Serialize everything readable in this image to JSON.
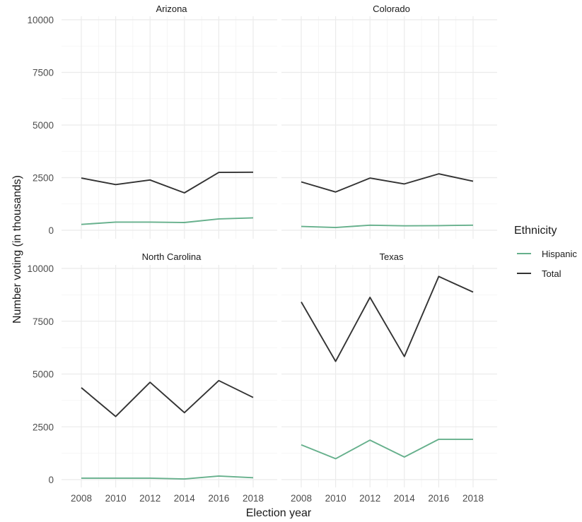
{
  "colors": {
    "hispanic": "#66b08c",
    "total": "#333333",
    "grid": "#ebebeb"
  },
  "legend": {
    "title": "Ethnicity",
    "items": [
      {
        "label": "Hispanic",
        "color": "#66b08c"
      },
      {
        "label": "Total",
        "color": "#333333"
      }
    ]
  },
  "chart_data": {
    "type": "line",
    "xlabel": "Election year",
    "ylabel": "Number voting (in thousands)",
    "x": [
      2008,
      2010,
      2012,
      2014,
      2016,
      2018
    ],
    "x_ticks": [
      "2008",
      "2010",
      "2012",
      "2014",
      "2016",
      "2018"
    ],
    "ylim": [
      0,
      10000
    ],
    "y_ticks": [
      "0",
      "2500",
      "5000",
      "7500",
      "10000"
    ],
    "grid": true,
    "legend_position": "right",
    "facets": [
      {
        "title": "Arizona",
        "series": [
          {
            "name": "Total",
            "values": [
              2480,
              2170,
              2390,
              1780,
              2750,
              2760
            ]
          },
          {
            "name": "Hispanic",
            "values": [
              280,
              390,
              390,
              370,
              540,
              590
            ]
          }
        ]
      },
      {
        "title": "Colorado",
        "series": [
          {
            "name": "Total",
            "values": [
              2300,
              1820,
              2480,
              2200,
              2680,
              2330
            ]
          },
          {
            "name": "Hispanic",
            "values": [
              180,
              130,
              240,
              210,
              220,
              240
            ]
          }
        ]
      },
      {
        "title": "North Carolina",
        "series": [
          {
            "name": "Total",
            "values": [
              4350,
              2990,
              4610,
              3170,
              4690,
              3890
            ]
          },
          {
            "name": "Hispanic",
            "values": [
              70,
              70,
              70,
              30,
              170,
              90
            ]
          }
        ]
      },
      {
        "title": "Texas",
        "series": [
          {
            "name": "Total",
            "values": [
              8410,
              5600,
              8630,
              5830,
              9620,
              8880
            ]
          },
          {
            "name": "Hispanic",
            "values": [
              1650,
              990,
              1870,
              1070,
              1910,
              1910
            ]
          }
        ]
      }
    ]
  }
}
